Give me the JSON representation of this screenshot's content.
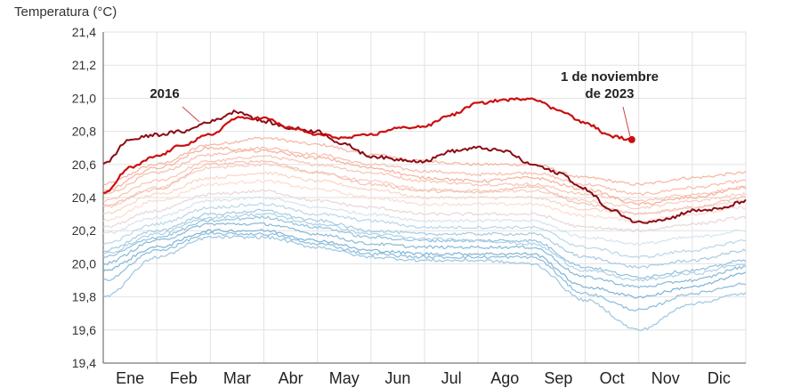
{
  "chart_data": {
    "type": "line",
    "title": "",
    "ylabel": "Temperatura (°C)",
    "xlabel": "",
    "ylim": [
      19.4,
      21.4
    ],
    "yticks": [
      "19,4",
      "19,6",
      "19,8",
      "20,0",
      "20,2",
      "20,4",
      "20,6",
      "20,8",
      "21,0",
      "21,2",
      "21,4"
    ],
    "yticks_values": [
      19.4,
      19.6,
      19.8,
      20.0,
      20.2,
      20.4,
      20.6,
      20.8,
      21.0,
      21.2,
      21.4
    ],
    "categories": [
      "Ene",
      "Feb",
      "Mar",
      "Abr",
      "May",
      "Jun",
      "Jul",
      "Ago",
      "Sep",
      "Oct",
      "Nov",
      "Dic"
    ],
    "grid": true,
    "annotations": [
      {
        "text": "2016",
        "series": "2016"
      },
      {
        "text_lines": [
          "1 de noviembre",
          "de 2023"
        ],
        "series": "2023"
      }
    ],
    "colors": {
      "y2023": "#cc0e0e",
      "y2016": "#8b0a14",
      "warm": "#f3a48e",
      "cool": "#7fb6d8",
      "grid": "#e2e2e2"
    },
    "series": [
      {
        "name": "2016",
        "x": [
          0,
          0.5,
          1,
          1.5,
          2,
          2.5,
          3,
          3.5,
          4,
          4.5,
          5,
          5.5,
          6,
          6.5,
          7,
          7.5,
          8,
          8.5,
          9,
          9.5,
          10,
          10.5,
          11,
          11.5,
          12
        ],
        "values": [
          20.6,
          20.75,
          20.78,
          20.8,
          20.86,
          20.92,
          20.86,
          20.82,
          20.8,
          20.72,
          20.65,
          20.63,
          20.62,
          20.68,
          20.7,
          20.68,
          20.6,
          20.55,
          20.45,
          20.32,
          20.25,
          20.27,
          20.32,
          20.33,
          20.38
        ]
      },
      {
        "name": "2023",
        "x": [
          0,
          0.5,
          1,
          1.5,
          2,
          2.5,
          3,
          3.5,
          4,
          4.5,
          5,
          5.5,
          6,
          6.5,
          7,
          7.5,
          8,
          8.5,
          9,
          9.5,
          9.87
        ],
        "values": [
          20.42,
          20.58,
          20.65,
          20.72,
          20.78,
          20.88,
          20.88,
          20.82,
          20.78,
          20.76,
          20.78,
          20.82,
          20.83,
          20.9,
          20.97,
          20.99,
          21.0,
          20.93,
          20.85,
          20.77,
          20.75
        ]
      }
    ],
    "background_years": [
      {
        "color": "#f6b3a0",
        "values": [
          20.48,
          20.6,
          20.72,
          20.76,
          20.72,
          20.66,
          20.62,
          20.6,
          20.6,
          20.52,
          20.48,
          20.52,
          20.55
        ]
      },
      {
        "color": "#f7bca9",
        "values": [
          20.42,
          20.55,
          20.66,
          20.7,
          20.66,
          20.6,
          20.56,
          20.54,
          20.55,
          20.48,
          20.42,
          20.46,
          20.5
        ]
      },
      {
        "color": "#f8c4b2",
        "values": [
          20.38,
          20.5,
          20.62,
          20.65,
          20.6,
          20.55,
          20.5,
          20.48,
          20.48,
          20.42,
          20.38,
          20.42,
          20.46
        ]
      },
      {
        "color": "#f9ccbc",
        "values": [
          20.34,
          20.46,
          20.58,
          20.6,
          20.55,
          20.5,
          20.45,
          20.44,
          20.44,
          20.38,
          20.34,
          20.38,
          20.42
        ]
      },
      {
        "color": "#fad4c6",
        "values": [
          20.3,
          20.42,
          20.52,
          20.55,
          20.5,
          20.45,
          20.4,
          20.4,
          20.4,
          20.33,
          20.3,
          20.34,
          20.38
        ]
      },
      {
        "color": "#fbdcd0",
        "values": [
          20.26,
          20.38,
          20.48,
          20.5,
          20.45,
          20.4,
          20.36,
          20.36,
          20.36,
          20.29,
          20.26,
          20.3,
          20.34
        ]
      },
      {
        "color": "#f2c2b4",
        "values": [
          20.35,
          20.45,
          20.6,
          20.62,
          20.55,
          20.48,
          20.44,
          20.43,
          20.47,
          20.36,
          20.3,
          20.34,
          20.4
        ]
      },
      {
        "color": "#f5b09c",
        "values": [
          20.44,
          20.58,
          20.7,
          20.68,
          20.64,
          20.58,
          20.52,
          20.5,
          20.52,
          20.45,
          20.36,
          20.4,
          20.46
        ]
      },
      {
        "color": "#e8d6d8",
        "values": [
          20.22,
          20.32,
          20.42,
          20.44,
          20.38,
          20.34,
          20.3,
          20.3,
          20.3,
          20.22,
          20.2,
          20.24,
          20.28
        ]
      },
      {
        "color": "#d4e4ef",
        "values": [
          20.18,
          20.28,
          20.38,
          20.4,
          20.34,
          20.3,
          20.26,
          20.26,
          20.26,
          20.16,
          20.12,
          20.16,
          20.2
        ]
      },
      {
        "color": "#b9d6ea",
        "values": [
          20.12,
          20.24,
          20.34,
          20.36,
          20.3,
          20.26,
          20.22,
          20.22,
          20.22,
          20.1,
          20.04,
          20.08,
          20.14
        ]
      },
      {
        "color": "#a4cbe4",
        "values": [
          20.08,
          20.2,
          20.3,
          20.32,
          20.26,
          20.2,
          20.18,
          20.18,
          20.18,
          20.04,
          19.98,
          20.02,
          20.08
        ]
      },
      {
        "color": "#93c1df",
        "values": [
          20.04,
          20.16,
          20.26,
          20.28,
          20.22,
          20.16,
          20.14,
          20.14,
          20.14,
          19.98,
          19.92,
          19.96,
          20.02
        ]
      },
      {
        "color": "#86b9da",
        "values": [
          20.0,
          20.14,
          20.24,
          20.24,
          20.18,
          20.12,
          20.1,
          20.1,
          20.1,
          19.92,
          19.86,
          19.9,
          19.98
        ]
      },
      {
        "color": "#7db3d6",
        "values": [
          19.96,
          20.1,
          20.2,
          20.2,
          20.14,
          20.08,
          20.06,
          20.06,
          20.06,
          19.86,
          19.8,
          19.86,
          19.94
        ]
      },
      {
        "color": "#8bbcdb",
        "values": [
          19.9,
          20.08,
          20.18,
          20.18,
          20.12,
          20.06,
          20.04,
          20.04,
          20.04,
          19.82,
          19.72,
          19.82,
          19.88
        ]
      },
      {
        "color": "#9cc6e1",
        "values": [
          19.8,
          20.04,
          20.16,
          20.16,
          20.1,
          20.04,
          20.02,
          20.02,
          20.0,
          19.78,
          19.6,
          19.76,
          19.82
        ]
      },
      {
        "color": "#aed0e6",
        "values": [
          20.06,
          20.18,
          20.28,
          20.3,
          20.24,
          20.18,
          20.15,
          20.14,
          20.12,
          19.96,
          19.9,
          19.94,
          20.0
        ]
      }
    ]
  }
}
